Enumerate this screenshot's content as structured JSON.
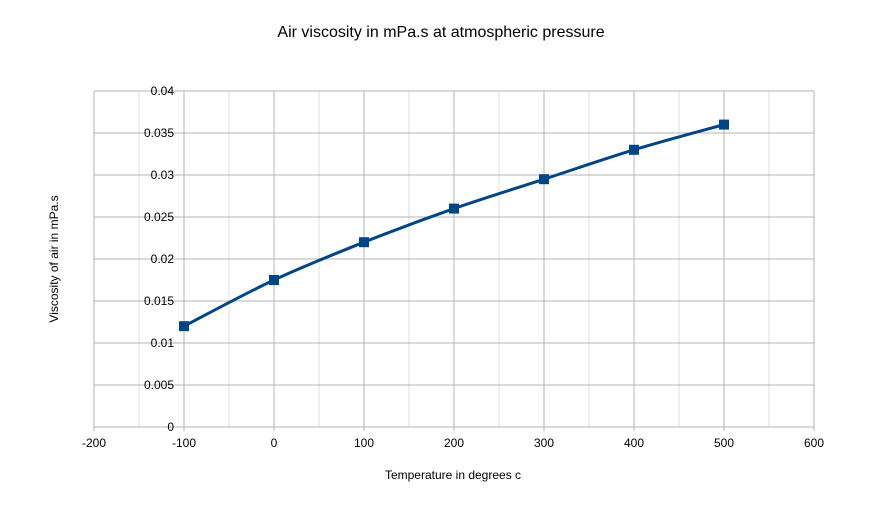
{
  "chart_data": {
    "type": "line",
    "title": "Air viscosity in mPa.s at atmospheric pressure",
    "xlabel": "Temperature in degrees c",
    "ylabel": "Viscosity of air in mPa.s",
    "xlim": [
      -200,
      600
    ],
    "ylim": [
      0,
      0.04
    ],
    "x_ticks": [
      "-200",
      "-100",
      "0",
      "100",
      "200",
      "300",
      "400",
      "500",
      "600"
    ],
    "y_ticks": [
      "0",
      "0.005",
      "0.01",
      "0.015",
      "0.02",
      "0.025",
      "0.03",
      "0.035",
      "0.04"
    ],
    "grid": true,
    "smooth": true,
    "marker": "square",
    "color": "#004586",
    "x": [
      -100,
      0,
      100,
      200,
      300,
      400,
      500
    ],
    "y": [
      0.012,
      0.0175,
      0.022,
      0.026,
      0.0295,
      0.033,
      0.036
    ]
  }
}
